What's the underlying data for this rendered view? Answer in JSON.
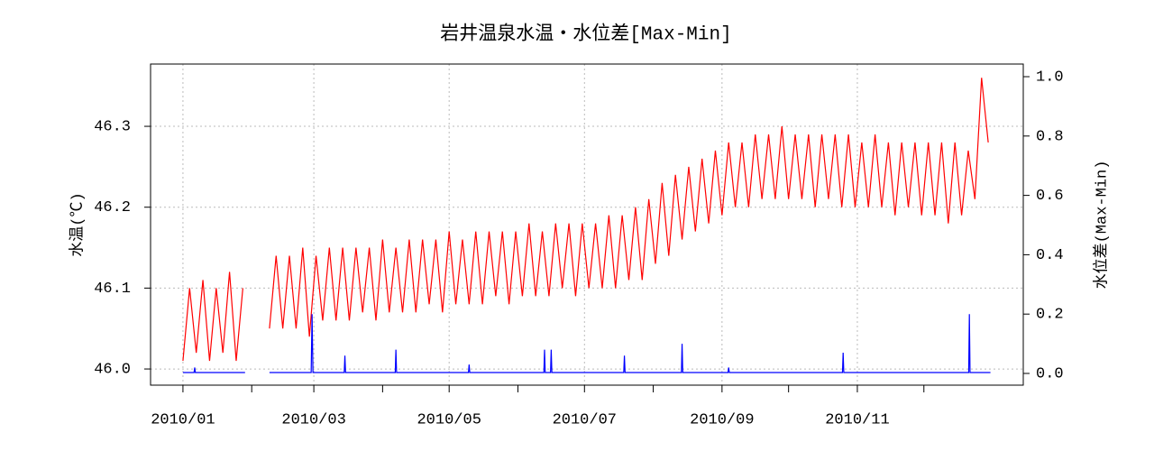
{
  "chart_data": {
    "type": "line",
    "title": "岩井温泉水温・水位差[Max-Min]",
    "ylabel": "水温(℃)",
    "y2label": "水位差(Max-Min)",
    "xlim": [
      -14.6,
      378.8
    ],
    "xticks": [
      {
        "value": 0,
        "label": "2010/01"
      },
      {
        "value": 59,
        "label": "2010/03"
      },
      {
        "value": 120,
        "label": "2010/05"
      },
      {
        "value": 181,
        "label": "2010/07"
      },
      {
        "value": 243,
        "label": "2010/09"
      },
      {
        "value": 304,
        "label": "2010/11"
      }
    ],
    "xminorticks": [
      31,
      90,
      151,
      212,
      273,
      334
    ],
    "ylim": [
      45.98,
      46.377
    ],
    "yticks": [
      {
        "value": 46,
        "label": "46.0"
      },
      46.1,
      46.2,
      46.3
    ],
    "y2lim": [
      -0.0395,
      1.0426
    ],
    "y2ticks": [
      {
        "value": 0,
        "label": "0.0"
      },
      0.2,
      0.4,
      0.6,
      0.8,
      {
        "value": 1,
        "label": "1.0"
      }
    ],
    "grid": true,
    "series": [
      {
        "color": "#ff0000",
        "axis": "y",
        "x": [
          0,
          3,
          6,
          9,
          12,
          15,
          18,
          21,
          24,
          27,
          33,
          39,
          42,
          45,
          48,
          51,
          54,
          57,
          60,
          63,
          66,
          69,
          72,
          75,
          78,
          81,
          84,
          87,
          90,
          93,
          96,
          99,
          102,
          105,
          108,
          111,
          114,
          117,
          120,
          123,
          126,
          129,
          132,
          135,
          138,
          141,
          144,
          147,
          150,
          153,
          156,
          159,
          162,
          165,
          168,
          171,
          174,
          177,
          180,
          183,
          186,
          189,
          192,
          195,
          198,
          201,
          204,
          207,
          210,
          213,
          216,
          219,
          222,
          225,
          228,
          231,
          234,
          237,
          240,
          243,
          246,
          249,
          252,
          255,
          258,
          261,
          264,
          267,
          270,
          273,
          276,
          279,
          282,
          285,
          288,
          291,
          294,
          297,
          300,
          303,
          306,
          309,
          312,
          315,
          318,
          321,
          324,
          327,
          330,
          333,
          336,
          339,
          342,
          345,
          348,
          351,
          354,
          357,
          360,
          363
        ],
        "values": [
          46.01,
          46.1,
          46.02,
          46.11,
          46.01,
          46.1,
          46.02,
          46.12,
          46.01,
          46.1,
          null,
          46.05,
          46.14,
          46.05,
          46.14,
          46.05,
          46.15,
          46.04,
          46.14,
          46.06,
          46.15,
          46.06,
          46.15,
          46.06,
          46.15,
          46.07,
          46.15,
          46.06,
          46.16,
          46.07,
          46.15,
          46.07,
          46.16,
          46.07,
          46.16,
          46.08,
          46.16,
          46.07,
          46.17,
          46.08,
          46.16,
          46.08,
          46.17,
          46.08,
          46.17,
          46.09,
          46.17,
          46.08,
          46.17,
          46.09,
          46.18,
          46.09,
          46.17,
          46.09,
          46.18,
          46.1,
          46.18,
          46.09,
          46.18,
          46.1,
          46.18,
          46.1,
          46.19,
          46.1,
          46.19,
          46.11,
          46.2,
          46.11,
          46.21,
          46.13,
          46.23,
          46.14,
          46.24,
          46.16,
          46.25,
          46.17,
          46.26,
          46.18,
          46.27,
          46.19,
          46.28,
          46.2,
          46.28,
          46.2,
          46.29,
          46.21,
          46.29,
          46.21,
          46.3,
          46.21,
          46.29,
          46.21,
          46.29,
          46.2,
          46.29,
          46.21,
          46.29,
          46.2,
          46.29,
          46.2,
          46.28,
          46.2,
          46.29,
          46.2,
          46.28,
          46.19,
          46.28,
          46.2,
          46.28,
          46.19,
          46.28,
          46.19,
          46.28,
          46.18,
          46.28,
          46.19,
          46.27,
          46.21,
          46.36,
          46.28
        ]
      },
      {
        "color": "#0000ff",
        "axis": "y2",
        "x": [
          0,
          5,
          5.3,
          5.6,
          28,
          33,
          39,
          57.8,
          58.2,
          58.6,
          72.7,
          73,
          73.3,
          95.7,
          96,
          96.3,
          128.7,
          129,
          129.3,
          162.7,
          163,
          163.3,
          165.7,
          166,
          166.3,
          198.7,
          199,
          199.3,
          224.7,
          225,
          225.3,
          245.7,
          246,
          246.3,
          297.3,
          297.6,
          297.9,
          354.2,
          354.5,
          354.8,
          364
        ],
        "values": [
          0.003,
          0.003,
          0.02,
          0.003,
          0.003,
          null,
          0.003,
          0.003,
          0.2,
          0.003,
          0.003,
          0.06,
          0.003,
          0.003,
          0.08,
          0.003,
          0.003,
          0.03,
          0.003,
          0.003,
          0.08,
          0.003,
          0.003,
          0.08,
          0.003,
          0.003,
          0.06,
          0.003,
          0.003,
          0.1,
          0.003,
          0.003,
          0.02,
          0.003,
          0.003,
          0.07,
          0.003,
          0.003,
          0.2,
          0.003,
          0.003
        ]
      }
    ]
  }
}
